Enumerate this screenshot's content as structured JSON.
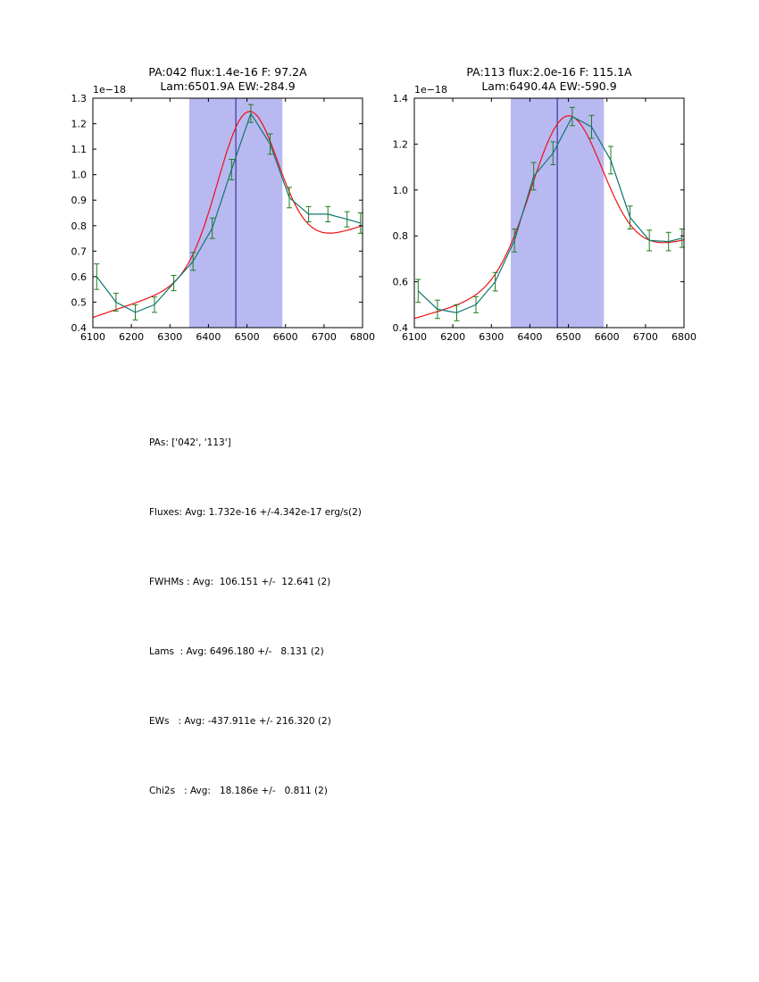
{
  "figure": {
    "background": "#ffffff",
    "axis_color": "#000000"
  },
  "stats": {
    "lines": [
      "PAs: ['042', '113']",
      "Fluxes: Avg: 1.732e-16 +/-4.342e-17 erg/s(2)",
      "FWHMs : Avg:  106.151 +/-  12.641 (2)",
      "Lams  : Avg: 6496.180 +/-   8.131 (2)",
      "EWs   : Avg: -437.911e +/- 216.320 (2)",
      "Chi2s   : Avg:   18.186e +/-   0.811 (2)"
    ]
  },
  "chart_data": [
    {
      "type": "line",
      "title_line1": "PA:042 flux:1.4e-16 F: 97.2A",
      "title_line2": "Lam:6501.9A EW:-284.9",
      "offset_label": "1e−18",
      "xlabel": "",
      "ylabel": "",
      "xlim": [
        6100,
        6800
      ],
      "ylim": [
        0.4,
        1.3
      ],
      "xticks": [
        6100,
        6200,
        6300,
        6400,
        6500,
        6600,
        6700,
        6800
      ],
      "xtick_labels": [
        "6100",
        "6200",
        "6300",
        "6400",
        "6500",
        "6600",
        "6700",
        "6800"
      ],
      "yticks": [
        0.4,
        0.5,
        0.6,
        0.7,
        0.8,
        0.9,
        1.0,
        1.1,
        1.2,
        1.3
      ],
      "ytick_labels": [
        "0.4",
        "0.5",
        "0.6",
        "0.7",
        "0.8",
        "0.9",
        "1.0",
        "1.1",
        "1.2",
        "1.3"
      ],
      "grid": false,
      "legend": "none",
      "band": {
        "x0": 6350,
        "x1": 6592,
        "color": "#b9b9f2"
      },
      "vline": {
        "x": 6471,
        "color": "#1b1b8f"
      },
      "series": [
        {
          "name": "spectrum-data",
          "type": "errorbar-line",
          "color": "#0e766e",
          "error_color": "#1e7d1e",
          "x": [
            6110,
            6160,
            6210,
            6260,
            6310,
            6360,
            6410,
            6460,
            6510,
            6560,
            6610,
            6660,
            6710,
            6760,
            6795
          ],
          "y": [
            0.6,
            0.5,
            0.46,
            0.49,
            0.575,
            0.66,
            0.79,
            1.02,
            1.24,
            1.12,
            0.91,
            0.845,
            0.845,
            0.825,
            0.81
          ],
          "yerr": [
            0.05,
            0.035,
            0.03,
            0.03,
            0.03,
            0.035,
            0.04,
            0.04,
            0.035,
            0.04,
            0.04,
            0.03,
            0.03,
            0.03,
            0.04
          ]
        },
        {
          "name": "gaussian-fit",
          "type": "model-curve",
          "color": "#ee1111",
          "gaussian": {
            "center": 6502,
            "sigma": 78,
            "amplitude": 0.6,
            "continuum_left": 0.44,
            "continuum_right": 0.8
          }
        }
      ]
    },
    {
      "type": "line",
      "title_line1": "PA:113 flux:2.0e-16 F: 115.1A",
      "title_line2": "Lam:6490.4A EW:-590.9",
      "offset_label": "1e−18",
      "xlabel": "",
      "ylabel": "",
      "xlim": [
        6100,
        6800
      ],
      "ylim": [
        0.4,
        1.4
      ],
      "xticks": [
        6100,
        6200,
        6300,
        6400,
        6500,
        6600,
        6700,
        6800
      ],
      "xtick_labels": [
        "6100",
        "6200",
        "6300",
        "6400",
        "6500",
        "6600",
        "6700",
        "6800"
      ],
      "yticks": [
        0.4,
        0.6,
        0.8,
        1.0,
        1.2,
        1.4
      ],
      "ytick_labels": [
        "0.4",
        "0.6",
        "0.8",
        "1.0",
        "1.2",
        "1.4"
      ],
      "grid": false,
      "legend": "none",
      "band": {
        "x0": 6350,
        "x1": 6592,
        "color": "#b9b9f2"
      },
      "vline": {
        "x": 6471,
        "color": "#1b1b8f"
      },
      "series": [
        {
          "name": "spectrum-data",
          "type": "errorbar-line",
          "color": "#0e766e",
          "error_color": "#1e7d1e",
          "x": [
            6110,
            6160,
            6210,
            6260,
            6310,
            6360,
            6410,
            6460,
            6510,
            6560,
            6610,
            6660,
            6710,
            6760,
            6795
          ],
          "y": [
            0.56,
            0.48,
            0.465,
            0.5,
            0.6,
            0.78,
            1.06,
            1.16,
            1.32,
            1.275,
            1.13,
            0.88,
            0.78,
            0.775,
            0.79
          ],
          "yerr": [
            0.05,
            0.04,
            0.035,
            0.035,
            0.04,
            0.05,
            0.06,
            0.05,
            0.04,
            0.05,
            0.06,
            0.05,
            0.045,
            0.04,
            0.04
          ]
        },
        {
          "name": "gaussian-fit",
          "type": "model-curve",
          "color": "#ee1111",
          "gaussian": {
            "center": 6495,
            "sigma": 92,
            "amplitude": 0.69,
            "continuum_left": 0.44,
            "continuum_right": 0.78
          }
        }
      ]
    }
  ]
}
